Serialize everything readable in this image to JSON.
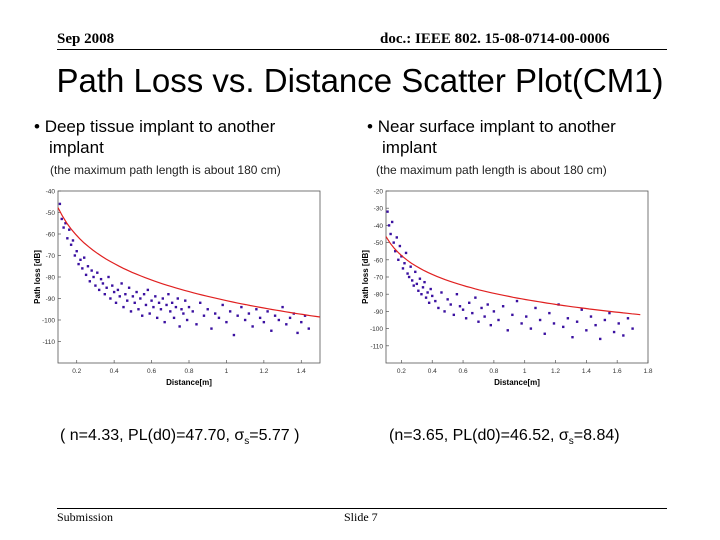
{
  "header": {
    "date": "Sep 2008",
    "doc_id": "doc.: IEEE 802. 15-08-0714-00-0006"
  },
  "title": "Path Loss vs. Distance Scatter Plot(CM1)",
  "left": {
    "bullet_marker": "•",
    "bullet_line1": "Deep tissue implant to another",
    "bullet_line2": "implant",
    "note": "(the maximum path length is about 180 cm)",
    "eq_prefix": "( n=4.33, PL(d0)=47.70, σ",
    "eq_sub": "s",
    "eq_suffix": "=5.77 )"
  },
  "right": {
    "bullet_marker": "•",
    "bullet_line1": "Near surface implant to another",
    "bullet_line2": "implant",
    "note": "(the maximum path length is about 180 cm)",
    "eq_prefix": "(n=3.65, PL(d0)=46.52, σ",
    "eq_sub": "s",
    "eq_suffix": "=8.84)"
  },
  "footer": {
    "left": "Submission",
    "center": "Slide 7"
  },
  "colors": {
    "points": "#3a10a0",
    "fit_line": "#e02020",
    "axes": "#555555"
  },
  "chart_data": [
    {
      "type": "scatter",
      "title": "",
      "xlabel": "Distance[m]",
      "ylabel": "Path loss [dB]",
      "xlim": [
        0.1,
        1.5
      ],
      "ylim": [
        -40,
        -120
      ],
      "xticks": [
        0.2,
        0.4,
        0.6,
        0.8,
        1,
        1.2,
        1.4
      ],
      "xtick_labels": [
        "0.2",
        "0.4",
        "0.6",
        "0.8",
        "1",
        "1.2",
        "1.4"
      ],
      "yticks": [
        -40,
        -50,
        -60,
        -70,
        -80,
        -90,
        -100,
        -110
      ],
      "ytick_labels": [
        "-40",
        "-50",
        "-60",
        "-70",
        "-80",
        "-90",
        "-100",
        "-110"
      ],
      "fit": {
        "n": 4.33,
        "pl_d0": 47.7,
        "sigma": 5.77,
        "d0": 0.1,
        "dmax": 1.5
      },
      "x": [
        0.11,
        0.12,
        0.13,
        0.14,
        0.15,
        0.16,
        0.17,
        0.18,
        0.19,
        0.2,
        0.21,
        0.22,
        0.23,
        0.24,
        0.25,
        0.26,
        0.27,
        0.28,
        0.29,
        0.3,
        0.31,
        0.32,
        0.33,
        0.34,
        0.35,
        0.36,
        0.37,
        0.38,
        0.39,
        0.4,
        0.41,
        0.42,
        0.43,
        0.44,
        0.45,
        0.46,
        0.47,
        0.48,
        0.49,
        0.5,
        0.51,
        0.52,
        0.53,
        0.54,
        0.55,
        0.56,
        0.57,
        0.58,
        0.59,
        0.6,
        0.61,
        0.62,
        0.63,
        0.64,
        0.65,
        0.66,
        0.67,
        0.68,
        0.69,
        0.7,
        0.71,
        0.72,
        0.73,
        0.74,
        0.75,
        0.76,
        0.77,
        0.78,
        0.79,
        0.8,
        0.82,
        0.84,
        0.86,
        0.88,
        0.9,
        0.92,
        0.94,
        0.96,
        0.98,
        1.0,
        1.02,
        1.04,
        1.06,
        1.08,
        1.1,
        1.12,
        1.14,
        1.16,
        1.18,
        1.2,
        1.22,
        1.24,
        1.26,
        1.28,
        1.3,
        1.32,
        1.34,
        1.36,
        1.38,
        1.4,
        1.42,
        1.44
      ],
      "y": [
        -46,
        -53,
        -57,
        -55,
        -62,
        -58,
        -65,
        -63,
        -70,
        -68,
        -74,
        -72,
        -76,
        -71,
        -79,
        -75,
        -82,
        -77,
        -80,
        -84,
        -78,
        -86,
        -81,
        -83,
        -88,
        -85,
        -80,
        -90,
        -84,
        -87,
        -92,
        -86,
        -89,
        -83,
        -94,
        -88,
        -91,
        -85,
        -96,
        -89,
        -92,
        -87,
        -95,
        -90,
        -98,
        -88,
        -93,
        -86,
        -97,
        -91,
        -94,
        -89,
        -99,
        -92,
        -95,
        -90,
        -101,
        -93,
        -88,
        -96,
        -92,
        -99,
        -94,
        -90,
        -103,
        -95,
        -97,
        -91,
        -100,
        -94,
        -96,
        -102,
        -92,
        -98,
        -95,
        -104,
        -97,
        -99,
        -93,
        -101,
        -96,
        -107,
        -98,
        -94,
        -100,
        -97,
        -103,
        -95,
        -99,
        -101,
        -96,
        -105,
        -98,
        -100,
        -94,
        -102,
        -99,
        -97,
        -106,
        -101,
        -98,
        -104
      ]
    },
    {
      "type": "scatter",
      "title": "",
      "xlabel": "Distance[m]",
      "ylabel": "Path loss [dB]",
      "xlim": [
        0.1,
        1.8
      ],
      "ylim": [
        -20,
        -120
      ],
      "xticks": [
        0.2,
        0.4,
        0.6,
        0.8,
        1,
        1.2,
        1.4,
        1.6,
        1.8
      ],
      "xtick_labels": [
        "0.2",
        "0.4",
        "0.6",
        "0.8",
        "1",
        "1.2",
        "1.4",
        "1.6",
        "1.8"
      ],
      "yticks": [
        -20,
        -30,
        -40,
        -50,
        -60,
        -70,
        -80,
        -90,
        -100,
        -110
      ],
      "ytick_labels": [
        "-20",
        "-30",
        "-40",
        "-50",
        "-60",
        "-70",
        "-80",
        "-90",
        "-100",
        "-110"
      ],
      "fit": {
        "n": 3.65,
        "pl_d0": 46.52,
        "sigma": 8.84,
        "d0": 0.1,
        "dmax": 1.75
      },
      "x": [
        0.11,
        0.12,
        0.13,
        0.14,
        0.15,
        0.16,
        0.17,
        0.18,
        0.19,
        0.2,
        0.21,
        0.22,
        0.23,
        0.24,
        0.25,
        0.26,
        0.27,
        0.28,
        0.29,
        0.3,
        0.31,
        0.32,
        0.33,
        0.34,
        0.35,
        0.36,
        0.37,
        0.38,
        0.39,
        0.4,
        0.42,
        0.44,
        0.46,
        0.48,
        0.5,
        0.52,
        0.54,
        0.56,
        0.58,
        0.6,
        0.62,
        0.64,
        0.66,
        0.68,
        0.7,
        0.72,
        0.74,
        0.76,
        0.78,
        0.8,
        0.83,
        0.86,
        0.89,
        0.92,
        0.95,
        0.98,
        1.01,
        1.04,
        1.07,
        1.1,
        1.13,
        1.16,
        1.19,
        1.22,
        1.25,
        1.28,
        1.31,
        1.34,
        1.37,
        1.4,
        1.43,
        1.46,
        1.49,
        1.52,
        1.55,
        1.58,
        1.61,
        1.64,
        1.67,
        1.7
      ],
      "y": [
        -32,
        -40,
        -45,
        -38,
        -50,
        -55,
        -47,
        -60,
        -52,
        -58,
        -65,
        -62,
        -56,
        -68,
        -70,
        -64,
        -72,
        -75,
        -67,
        -74,
        -78,
        -71,
        -80,
        -76,
        -73,
        -82,
        -79,
        -85,
        -77,
        -81,
        -84,
        -88,
        -79,
        -90,
        -83,
        -86,
        -92,
        -80,
        -87,
        -89,
        -94,
        -85,
        -91,
        -82,
        -96,
        -88,
        -93,
        -86,
        -98,
        -90,
        -95,
        -87,
        -101,
        -92,
        -84,
        -97,
        -93,
        -100,
        -88,
        -95,
        -103,
        -91,
        -97,
        -86,
        -99,
        -94,
        -105,
        -96,
        -89,
        -101,
        -93,
        -98,
        -106,
        -95,
        -91,
        -102,
        -97,
        -104,
        -94,
        -100
      ]
    }
  ]
}
